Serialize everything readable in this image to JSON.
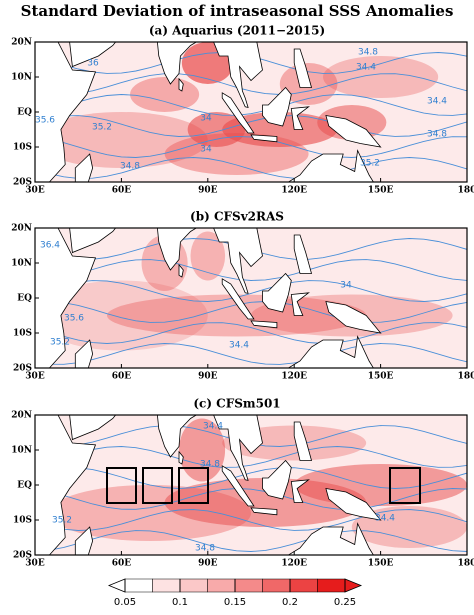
{
  "title": "Standard Deviation of intraseasonal SSS Anomalies",
  "lon_labels": [
    "30E",
    "60E",
    "90E",
    "120E",
    "150E",
    "180"
  ],
  "lat_labels": [
    "20N",
    "10N",
    "EQ",
    "10S",
    "20S"
  ],
  "panels": [
    {
      "title": "(a) Aquarius (2011−2015)",
      "contour_labels": [
        "36",
        "34.8",
        "34.4",
        "34.4",
        "35.6",
        "35.2",
        "34",
        "34",
        "34.8",
        "35.2",
        "34.8"
      ]
    },
    {
      "title": "(b) CFSv2RAS",
      "contour_labels": [
        "36.4",
        "35.6",
        "35.2",
        "34",
        "34.4"
      ]
    },
    {
      "title": "(c) CFSm501",
      "contour_labels": [
        "34.4",
        "34.8",
        "35.2",
        "34.4",
        "34.8"
      ]
    }
  ],
  "colorbar": {
    "ticks": [
      0.05,
      0.1,
      0.15,
      0.2,
      0.25
    ],
    "colors": [
      "#ffffff",
      "#fde2e2",
      "#fbc8c8",
      "#f8aaaa",
      "#f48a8a",
      "#f06868",
      "#ec4343",
      "#e61c1c"
    ]
  }
}
